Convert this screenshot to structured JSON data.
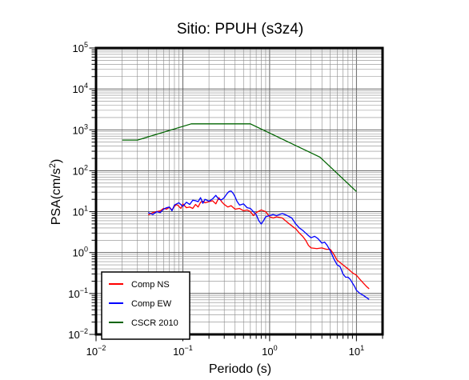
{
  "chart_data": {
    "type": "line",
    "title": "Sitio: PPUH (s3z4)",
    "xlabel": "Periodo (s)",
    "ylabel": "PSA(cm/s",
    "ylabel_sup": "2",
    "ylabel_close": ")",
    "x_scale": "log",
    "y_scale": "log",
    "xlim": [
      0.01,
      20
    ],
    "ylim": [
      0.01,
      100000
    ],
    "grid": true,
    "legend_position": "bottom-left",
    "x_ticks": [
      {
        "value": 0.01,
        "base": "10",
        "exp": "−2"
      },
      {
        "value": 0.1,
        "base": "10",
        "exp": "−1"
      },
      {
        "value": 1,
        "base": "10",
        "exp": "0"
      },
      {
        "value": 10,
        "base": "10",
        "exp": "1"
      }
    ],
    "y_ticks": [
      {
        "value": 0.01,
        "base": "10",
        "exp": "−2"
      },
      {
        "value": 0.1,
        "base": "10",
        "exp": "−1"
      },
      {
        "value": 1,
        "base": "10",
        "exp": "0"
      },
      {
        "value": 10,
        "base": "10",
        "exp": "1"
      },
      {
        "value": 100,
        "base": "10",
        "exp": "2"
      },
      {
        "value": 1000,
        "base": "10",
        "exp": "3"
      },
      {
        "value": 10000,
        "base": "10",
        "exp": "4"
      },
      {
        "value": 100000,
        "base": "10",
        "exp": "5"
      }
    ],
    "series": [
      {
        "name": "Comp NS",
        "color": "#ff0000",
        "points": [
          [
            0.04,
            8.3
          ],
          [
            0.045,
            9.5
          ],
          [
            0.05,
            10.0
          ],
          [
            0.055,
            10.5
          ],
          [
            0.06,
            12.0
          ],
          [
            0.065,
            11.5
          ],
          [
            0.07,
            12.8
          ],
          [
            0.075,
            11.0
          ],
          [
            0.08,
            13.5
          ],
          [
            0.085,
            15.0
          ],
          [
            0.09,
            13.5
          ],
          [
            0.095,
            12.0
          ],
          [
            0.1,
            15.5
          ],
          [
            0.11,
            12.5
          ],
          [
            0.12,
            13.0
          ],
          [
            0.13,
            12.0
          ],
          [
            0.14,
            15.0
          ],
          [
            0.15,
            13.0
          ],
          [
            0.16,
            17.0
          ],
          [
            0.17,
            18.0
          ],
          [
            0.18,
            16.5
          ],
          [
            0.2,
            17.5
          ],
          [
            0.22,
            18.5
          ],
          [
            0.24,
            15.5
          ],
          [
            0.26,
            22.0
          ],
          [
            0.28,
            17.5
          ],
          [
            0.3,
            15.0
          ],
          [
            0.33,
            13.0
          ],
          [
            0.36,
            14.0
          ],
          [
            0.4,
            11.5
          ],
          [
            0.45,
            12.0
          ],
          [
            0.5,
            10.5
          ],
          [
            0.55,
            11.0
          ],
          [
            0.6,
            10.0
          ],
          [
            0.65,
            8.0
          ],
          [
            0.7,
            9.5
          ],
          [
            0.8,
            11.0
          ],
          [
            0.9,
            10.0
          ],
          [
            1.0,
            7.5
          ],
          [
            1.1,
            7.0
          ],
          [
            1.2,
            7.5
          ],
          [
            1.4,
            7.0
          ],
          [
            1.6,
            5.5
          ],
          [
            1.8,
            4.5
          ],
          [
            2.0,
            3.8
          ],
          [
            2.2,
            3.0
          ],
          [
            2.4,
            2.5
          ],
          [
            2.6,
            2.0
          ],
          [
            2.8,
            1.5
          ],
          [
            3.0,
            1.3
          ],
          [
            3.5,
            1.25
          ],
          [
            4.0,
            1.3
          ],
          [
            4.5,
            1.2
          ],
          [
            5.0,
            1.2
          ],
          [
            5.5,
            0.9
          ],
          [
            6.0,
            0.65
          ],
          [
            7.0,
            0.5
          ],
          [
            8.0,
            0.4
          ],
          [
            9.0,
            0.32
          ],
          [
            10.0,
            0.28
          ],
          [
            11.0,
            0.22
          ],
          [
            12.0,
            0.18
          ],
          [
            13.0,
            0.15
          ],
          [
            14.0,
            0.13
          ]
        ]
      },
      {
        "name": "Comp EW",
        "color": "#0000ff",
        "points": [
          [
            0.04,
            9.5
          ],
          [
            0.045,
            8.5
          ],
          [
            0.05,
            10.0
          ],
          [
            0.055,
            9.5
          ],
          [
            0.06,
            11.5
          ],
          [
            0.065,
            12.5
          ],
          [
            0.07,
            13.0
          ],
          [
            0.075,
            10.5
          ],
          [
            0.08,
            14.5
          ],
          [
            0.09,
            16.5
          ],
          [
            0.1,
            13.5
          ],
          [
            0.11,
            17.0
          ],
          [
            0.12,
            15.0
          ],
          [
            0.13,
            19.0
          ],
          [
            0.14,
            18.5
          ],
          [
            0.15,
            17.5
          ],
          [
            0.16,
            22.0
          ],
          [
            0.17,
            16.0
          ],
          [
            0.18,
            20.0
          ],
          [
            0.2,
            18.0
          ],
          [
            0.22,
            20.5
          ],
          [
            0.24,
            25.0
          ],
          [
            0.26,
            20.0
          ],
          [
            0.28,
            19.5
          ],
          [
            0.3,
            22.0
          ],
          [
            0.32,
            27.0
          ],
          [
            0.34,
            31.0
          ],
          [
            0.36,
            32.0
          ],
          [
            0.38,
            28.0
          ],
          [
            0.4,
            23.0
          ],
          [
            0.42,
            18.0
          ],
          [
            0.45,
            14.5
          ],
          [
            0.5,
            15.5
          ],
          [
            0.55,
            12.5
          ],
          [
            0.6,
            12.0
          ],
          [
            0.65,
            10.0
          ],
          [
            0.7,
            8.5
          ],
          [
            0.75,
            6.0
          ],
          [
            0.8,
            5.0
          ],
          [
            0.85,
            6.0
          ],
          [
            0.9,
            7.5
          ],
          [
            1.0,
            8.0
          ],
          [
            1.1,
            8.5
          ],
          [
            1.2,
            8.0
          ],
          [
            1.3,
            8.5
          ],
          [
            1.4,
            9.0
          ],
          [
            1.6,
            8.0
          ],
          [
            1.8,
            7.0
          ],
          [
            2.0,
            5.0
          ],
          [
            2.2,
            4.0
          ],
          [
            2.4,
            3.5
          ],
          [
            2.6,
            3.0
          ],
          [
            2.8,
            2.6
          ],
          [
            3.0,
            2.3
          ],
          [
            3.3,
            2.5
          ],
          [
            3.6,
            2.2
          ],
          [
            4.0,
            1.7
          ],
          [
            4.3,
            1.8
          ],
          [
            4.6,
            1.5
          ],
          [
            5.0,
            1.1
          ],
          [
            5.5,
            0.7
          ],
          [
            6.0,
            0.5
          ],
          [
            6.5,
            0.45
          ],
          [
            7.0,
            0.3
          ],
          [
            7.5,
            0.25
          ],
          [
            8.0,
            0.25
          ],
          [
            8.5,
            0.22
          ],
          [
            9.0,
            0.18
          ],
          [
            9.5,
            0.15
          ],
          [
            10.0,
            0.12
          ],
          [
            11.0,
            0.1
          ],
          [
            12.0,
            0.09
          ],
          [
            13.0,
            0.08
          ],
          [
            14.0,
            0.072
          ]
        ]
      },
      {
        "name": "CSCR 2010",
        "color": "#006400",
        "points": [
          [
            0.02,
            560
          ],
          [
            0.03,
            560
          ],
          [
            0.125,
            1400
          ],
          [
            0.6,
            1400
          ],
          [
            3.8,
            215
          ],
          [
            10.0,
            31
          ]
        ]
      }
    ]
  }
}
